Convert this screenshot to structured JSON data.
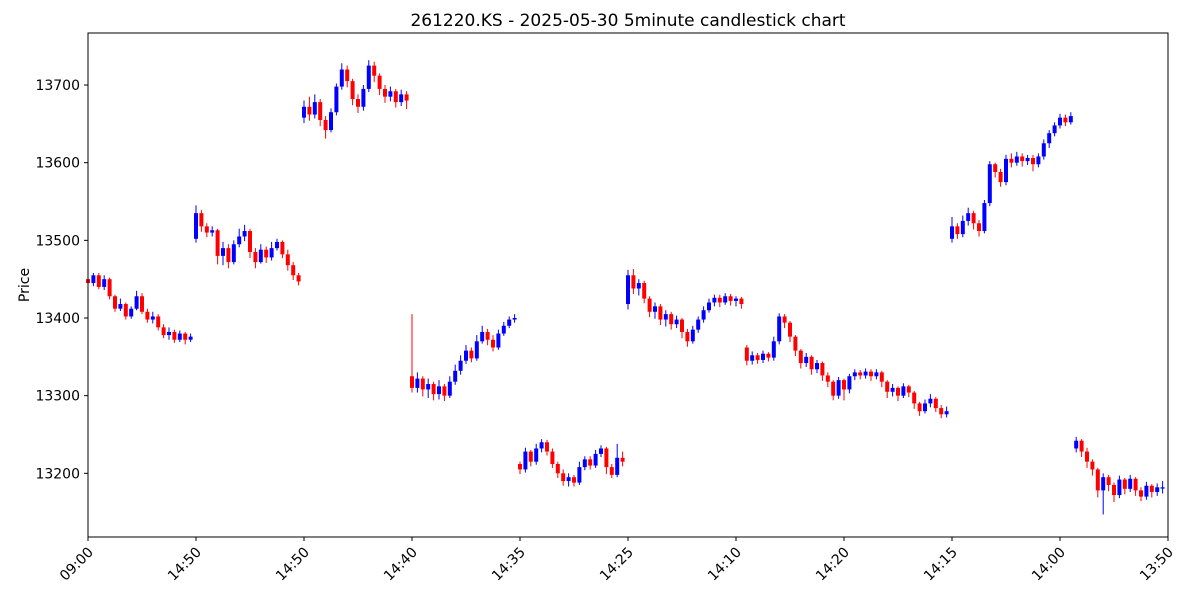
{
  "chart_data": {
    "type": "candlestick",
    "title": "261220.KS - 2025-05-30 5minute candlestick chart",
    "xlabel": "",
    "ylabel": "Price",
    "grid": false,
    "background": "#ffffff",
    "up_color": "#0000ff",
    "down_color": "#ff0000",
    "spine_color": "#000000",
    "interval": "5minute",
    "x_tick_labels": [
      "09:00",
      "14:50",
      "14:50",
      "14:40",
      "14:35",
      "14:25",
      "14:10",
      "14:20",
      "14:15",
      "14:00",
      "13:50"
    ],
    "candles_per_tick": 20,
    "tick_indices": [
      0,
      20,
      40,
      60,
      80,
      100,
      120,
      140,
      160,
      180,
      200
    ],
    "y_ticks": [
      13200,
      13300,
      13400,
      13500,
      13600,
      13700
    ],
    "ylim": [
      13118,
      13767
    ],
    "xlim_indices": [
      0,
      200
    ],
    "candles_format": [
      "open",
      "high",
      "low",
      "close"
    ],
    "candles": [
      [
        13450,
        13460,
        13440,
        13445
      ],
      [
        13445,
        13458,
        13441,
        13455
      ],
      [
        13455,
        13458,
        13437,
        13440
      ],
      [
        13440,
        13455,
        13436,
        13450
      ],
      [
        13450,
        13452,
        13424,
        13428
      ],
      [
        13428,
        13430,
        13408,
        13412
      ],
      [
        13412,
        13425,
        13409,
        13418
      ],
      [
        13418,
        13420,
        13398,
        13402
      ],
      [
        13402,
        13415,
        13399,
        13412
      ],
      [
        13412,
        13435,
        13410,
        13428
      ],
      [
        13428,
        13432,
        13405,
        13408
      ],
      [
        13408,
        13412,
        13394,
        13398
      ],
      [
        13398,
        13408,
        13393,
        13402
      ],
      [
        13402,
        13405,
        13384,
        13388
      ],
      [
        13388,
        13392,
        13374,
        13378
      ],
      [
        13378,
        13388,
        13372,
        13382
      ],
      [
        13382,
        13385,
        13368,
        13372
      ],
      [
        13372,
        13384,
        13369,
        13380
      ],
      [
        13380,
        13382,
        13366,
        13372
      ],
      [
        13372,
        13380,
        13369,
        13376
      ],
      [
        13502,
        13545,
        13497,
        13535
      ],
      [
        13535,
        13539,
        13511,
        13518
      ],
      [
        13518,
        13522,
        13504,
        13510
      ],
      [
        13510,
        13518,
        13505,
        13513
      ],
      [
        13513,
        13515,
        13469,
        13480
      ],
      [
        13480,
        13498,
        13468,
        13490
      ],
      [
        13490,
        13495,
        13464,
        13472
      ],
      [
        13472,
        13500,
        13469,
        13495
      ],
      [
        13495,
        13515,
        13491,
        13505
      ],
      [
        13505,
        13520,
        13499,
        13512
      ],
      [
        13512,
        13515,
        13477,
        13485
      ],
      [
        13485,
        13490,
        13464,
        13472
      ],
      [
        13472,
        13495,
        13470,
        13488
      ],
      [
        13488,
        13492,
        13471,
        13478
      ],
      [
        13478,
        13498,
        13474,
        13490
      ],
      [
        13490,
        13502,
        13487,
        13498
      ],
      [
        13498,
        13500,
        13477,
        13482
      ],
      [
        13482,
        13488,
        13461,
        13468
      ],
      [
        13468,
        13472,
        13449,
        13455
      ],
      [
        13455,
        13458,
        13442,
        13447
      ],
      [
        13658,
        13680,
        13651,
        13672
      ],
      [
        13672,
        13685,
        13654,
        13662
      ],
      [
        13662,
        13688,
        13657,
        13678
      ],
      [
        13678,
        13682,
        13647,
        13655
      ],
      [
        13655,
        13660,
        13631,
        13642
      ],
      [
        13642,
        13670,
        13639,
        13665
      ],
      [
        13665,
        13702,
        13661,
        13698
      ],
      [
        13698,
        13728,
        13694,
        13720
      ],
      [
        13720,
        13725,
        13697,
        13705
      ],
      [
        13705,
        13708,
        13674,
        13682
      ],
      [
        13682,
        13688,
        13664,
        13672
      ],
      [
        13672,
        13700,
        13667,
        13695
      ],
      [
        13695,
        13732,
        13691,
        13725
      ],
      [
        13725,
        13730,
        13704,
        13712
      ],
      [
        13712,
        13715,
        13687,
        13695
      ],
      [
        13695,
        13700,
        13677,
        13685
      ],
      [
        13685,
        13698,
        13679,
        13692
      ],
      [
        13692,
        13695,
        13671,
        13678
      ],
      [
        13678,
        13694,
        13673,
        13688
      ],
      [
        13688,
        13692,
        13669,
        13680
      ],
      [
        13325,
        13405,
        13304,
        13310
      ],
      [
        13310,
        13330,
        13304,
        13322
      ],
      [
        13322,
        13325,
        13299,
        13308
      ],
      [
        13308,
        13322,
        13297,
        13315
      ],
      [
        13315,
        13318,
        13294,
        13302
      ],
      [
        13302,
        13320,
        13295,
        13312
      ],
      [
        13312,
        13315,
        13293,
        13300
      ],
      [
        13300,
        13325,
        13297,
        13318
      ],
      [
        13318,
        13340,
        13314,
        13332
      ],
      [
        13332,
        13352,
        13327,
        13345
      ],
      [
        13345,
        13365,
        13341,
        13358
      ],
      [
        13358,
        13362,
        13343,
        13348
      ],
      [
        13348,
        13378,
        13345,
        13370
      ],
      [
        13370,
        13390,
        13367,
        13382
      ],
      [
        13382,
        13386,
        13365,
        13372
      ],
      [
        13372,
        13378,
        13357,
        13362
      ],
      [
        13362,
        13385,
        13359,
        13380
      ],
      [
        13380,
        13395,
        13377,
        13390
      ],
      [
        13390,
        13402,
        13387,
        13398
      ],
      [
        13398,
        13405,
        13394,
        13400
      ],
      [
        13212,
        13215,
        13199,
        13205
      ],
      [
        13205,
        13233,
        13201,
        13228
      ],
      [
        13228,
        13230,
        13209,
        13215
      ],
      [
        13215,
        13238,
        13211,
        13232
      ],
      [
        13232,
        13244,
        13227,
        13240
      ],
      [
        13240,
        13243,
        13223,
        13228
      ],
      [
        13228,
        13232,
        13207,
        13212
      ],
      [
        13212,
        13215,
        13194,
        13200
      ],
      [
        13200,
        13205,
        13184,
        13190
      ],
      [
        13190,
        13200,
        13183,
        13195
      ],
      [
        13195,
        13198,
        13183,
        13188
      ],
      [
        13188,
        13215,
        13185,
        13208
      ],
      [
        13208,
        13222,
        13204,
        13218
      ],
      [
        13218,
        13222,
        13205,
        13210
      ],
      [
        13210,
        13230,
        13207,
        13225
      ],
      [
        13225,
        13236,
        13221,
        13232
      ],
      [
        13232,
        13234,
        13199,
        13208
      ],
      [
        13208,
        13212,
        13194,
        13198
      ],
      [
        13198,
        13238,
        13195,
        13220
      ],
      [
        13220,
        13228,
        13209,
        13215
      ],
      [
        13418,
        13462,
        13411,
        13455
      ],
      [
        13455,
        13463,
        13431,
        13438
      ],
      [
        13438,
        13450,
        13429,
        13445
      ],
      [
        13445,
        13448,
        13419,
        13425
      ],
      [
        13425,
        13428,
        13401,
        13408
      ],
      [
        13408,
        13420,
        13399,
        13415
      ],
      [
        13415,
        13418,
        13391,
        13398
      ],
      [
        13398,
        13410,
        13389,
        13405
      ],
      [
        13405,
        13408,
        13385,
        13392
      ],
      [
        13392,
        13403,
        13387,
        13398
      ],
      [
        13398,
        13400,
        13374,
        13382
      ],
      [
        13382,
        13386,
        13363,
        13370
      ],
      [
        13370,
        13390,
        13367,
        13385
      ],
      [
        13385,
        13402,
        13381,
        13398
      ],
      [
        13398,
        13415,
        13394,
        13410
      ],
      [
        13410,
        13425,
        13407,
        13420
      ],
      [
        13420,
        13430,
        13415,
        13426
      ],
      [
        13426,
        13430,
        13414,
        13420
      ],
      [
        13420,
        13432,
        13417,
        13428
      ],
      [
        13428,
        13431,
        13416,
        13422
      ],
      [
        13422,
        13428,
        13415,
        13425
      ],
      [
        13425,
        13427,
        13412,
        13418
      ],
      [
        13362,
        13365,
        13339,
        13345
      ],
      [
        13345,
        13357,
        13340,
        13352
      ],
      [
        13352,
        13355,
        13341,
        13346
      ],
      [
        13346,
        13358,
        13342,
        13354
      ],
      [
        13354,
        13356,
        13344,
        13349
      ],
      [
        13349,
        13376,
        13345,
        13370
      ],
      [
        13370,
        13406,
        13366,
        13402
      ],
      [
        13402,
        13405,
        13387,
        13394
      ],
      [
        13394,
        13396,
        13369,
        13376
      ],
      [
        13376,
        13378,
        13351,
        13358
      ],
      [
        13358,
        13360,
        13335,
        13342
      ],
      [
        13342,
        13355,
        13337,
        13350
      ],
      [
        13350,
        13352,
        13327,
        13334
      ],
      [
        13334,
        13346,
        13329,
        13342
      ],
      [
        13342,
        13344,
        13319,
        13326
      ],
      [
        13326,
        13330,
        13311,
        13318
      ],
      [
        13318,
        13320,
        13294,
        13300
      ],
      [
        13300,
        13324,
        13296,
        13320
      ],
      [
        13320,
        13322,
        13294,
        13308
      ],
      [
        13308,
        13328,
        13303,
        13325
      ],
      [
        13325,
        13334,
        13320,
        13330
      ],
      [
        13330,
        13333,
        13321,
        13326
      ],
      [
        13326,
        13335,
        13322,
        13331
      ],
      [
        13331,
        13334,
        13319,
        13325
      ],
      [
        13325,
        13334,
        13321,
        13330
      ],
      [
        13330,
        13332,
        13311,
        13318
      ],
      [
        13318,
        13320,
        13297,
        13305
      ],
      [
        13305,
        13315,
        13299,
        13310
      ],
      [
        13310,
        13312,
        13293,
        13300
      ],
      [
        13300,
        13316,
        13297,
        13312
      ],
      [
        13312,
        13314,
        13298,
        13304
      ],
      [
        13304,
        13306,
        13283,
        13290
      ],
      [
        13290,
        13292,
        13274,
        13280
      ],
      [
        13280,
        13295,
        13277,
        13290
      ],
      [
        13290,
        13302,
        13285,
        13296
      ],
      [
        13296,
        13298,
        13279,
        13284
      ],
      [
        13284,
        13288,
        13271,
        13276
      ],
      [
        13276,
        13286,
        13272,
        13280
      ],
      [
        13502,
        13530,
        13497,
        13518
      ],
      [
        13518,
        13522,
        13502,
        13508
      ],
      [
        13508,
        13532,
        13504,
        13525
      ],
      [
        13525,
        13542,
        13519,
        13535
      ],
      [
        13535,
        13538,
        13514,
        13522
      ],
      [
        13522,
        13526,
        13505,
        13512
      ],
      [
        13512,
        13552,
        13509,
        13548
      ],
      [
        13548,
        13602,
        13544,
        13598
      ],
      [
        13598,
        13600,
        13581,
        13588
      ],
      [
        13588,
        13592,
        13569,
        13575
      ],
      [
        13575,
        13610,
        13571,
        13605
      ],
      [
        13605,
        13612,
        13594,
        13600
      ],
      [
        13600,
        13614,
        13596,
        13608
      ],
      [
        13608,
        13612,
        13595,
        13602
      ],
      [
        13602,
        13610,
        13597,
        13606
      ],
      [
        13606,
        13610,
        13589,
        13598
      ],
      [
        13598,
        13612,
        13594,
        13608
      ],
      [
        13608,
        13630,
        13604,
        13625
      ],
      [
        13625,
        13642,
        13619,
        13638
      ],
      [
        13638,
        13652,
        13634,
        13648
      ],
      [
        13648,
        13663,
        13644,
        13658
      ],
      [
        13658,
        13662,
        13647,
        13652
      ],
      [
        13652,
        13665,
        13649,
        13660
      ],
      [
        13232,
        13247,
        13227,
        13242
      ],
      [
        13242,
        13244,
        13221,
        13228
      ],
      [
        13228,
        13233,
        13207,
        13215
      ],
      [
        13215,
        13218,
        13197,
        13205
      ],
      [
        13205,
        13207,
        13169,
        13178
      ],
      [
        13178,
        13200,
        13147,
        13195
      ],
      [
        13195,
        13198,
        13177,
        13185
      ],
      [
        13185,
        13188,
        13163,
        13172
      ],
      [
        13172,
        13197,
        13168,
        13192
      ],
      [
        13192,
        13194,
        13173,
        13180
      ],
      [
        13180,
        13198,
        13176,
        13193
      ],
      [
        13193,
        13195,
        13171,
        13178
      ],
      [
        13178,
        13182,
        13164,
        13170
      ],
      [
        13170,
        13189,
        13166,
        13184
      ],
      [
        13184,
        13186,
        13169,
        13176
      ],
      [
        13176,
        13187,
        13171,
        13182
      ],
      [
        13182,
        13190,
        13174,
        13182
      ]
    ]
  }
}
